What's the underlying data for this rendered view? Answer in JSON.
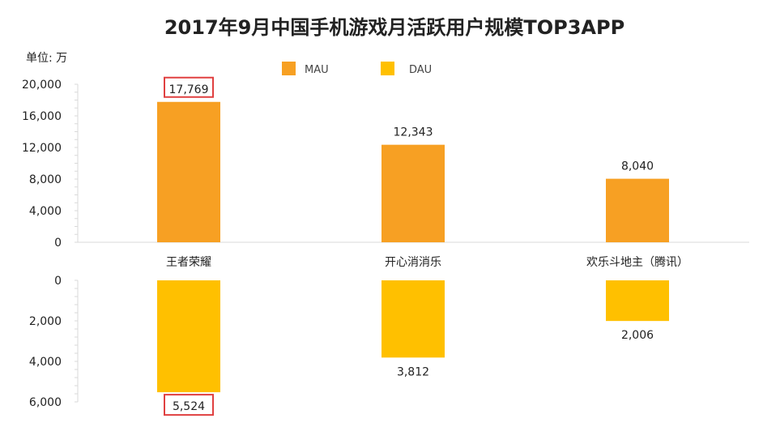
{
  "title": "2017年9月中国手机游戏月活跃用户规模TOP3APP",
  "unit_label": "单位: 万",
  "colors": {
    "mau": "#F7A023",
    "dau": "#FFC000",
    "highlight_border": "#E04040"
  },
  "chart_data": {
    "type": "bar",
    "categories": [
      "王者荣耀",
      "开心消消乐",
      "欢乐斗地主（腾讯）"
    ],
    "series": [
      {
        "name": "MAU",
        "values": [
          17769,
          12343,
          8040
        ],
        "value_labels": [
          "17,769",
          "12,343",
          "8,040"
        ],
        "ylim": [
          0,
          20000
        ],
        "ticks": [
          {
            "value": 20000,
            "label": "20,000"
          },
          {
            "value": 16000,
            "label": "16,000"
          },
          {
            "value": 12000,
            "label": "12,000"
          },
          {
            "value": 8000,
            "label": "8,000"
          },
          {
            "value": 4000,
            "label": "4,000"
          },
          {
            "value": 0,
            "label": "0"
          }
        ]
      },
      {
        "name": "DAU",
        "values": [
          5524,
          3812,
          2006
        ],
        "value_labels": [
          "5,524",
          "3,812",
          "2,006"
        ],
        "ylim": [
          0,
          6000
        ],
        "inverted": true,
        "ticks": [
          {
            "value": 0,
            "label": "0"
          },
          {
            "value": 2000,
            "label": "2,000"
          },
          {
            "value": 4000,
            "label": "4,000"
          },
          {
            "value": 6000,
            "label": "6,000"
          }
        ]
      }
    ],
    "highlighted_labels": [
      "17,769",
      "5,524"
    ],
    "legend": [
      "MAU",
      "DAU"
    ],
    "legend_position": "top-center"
  }
}
